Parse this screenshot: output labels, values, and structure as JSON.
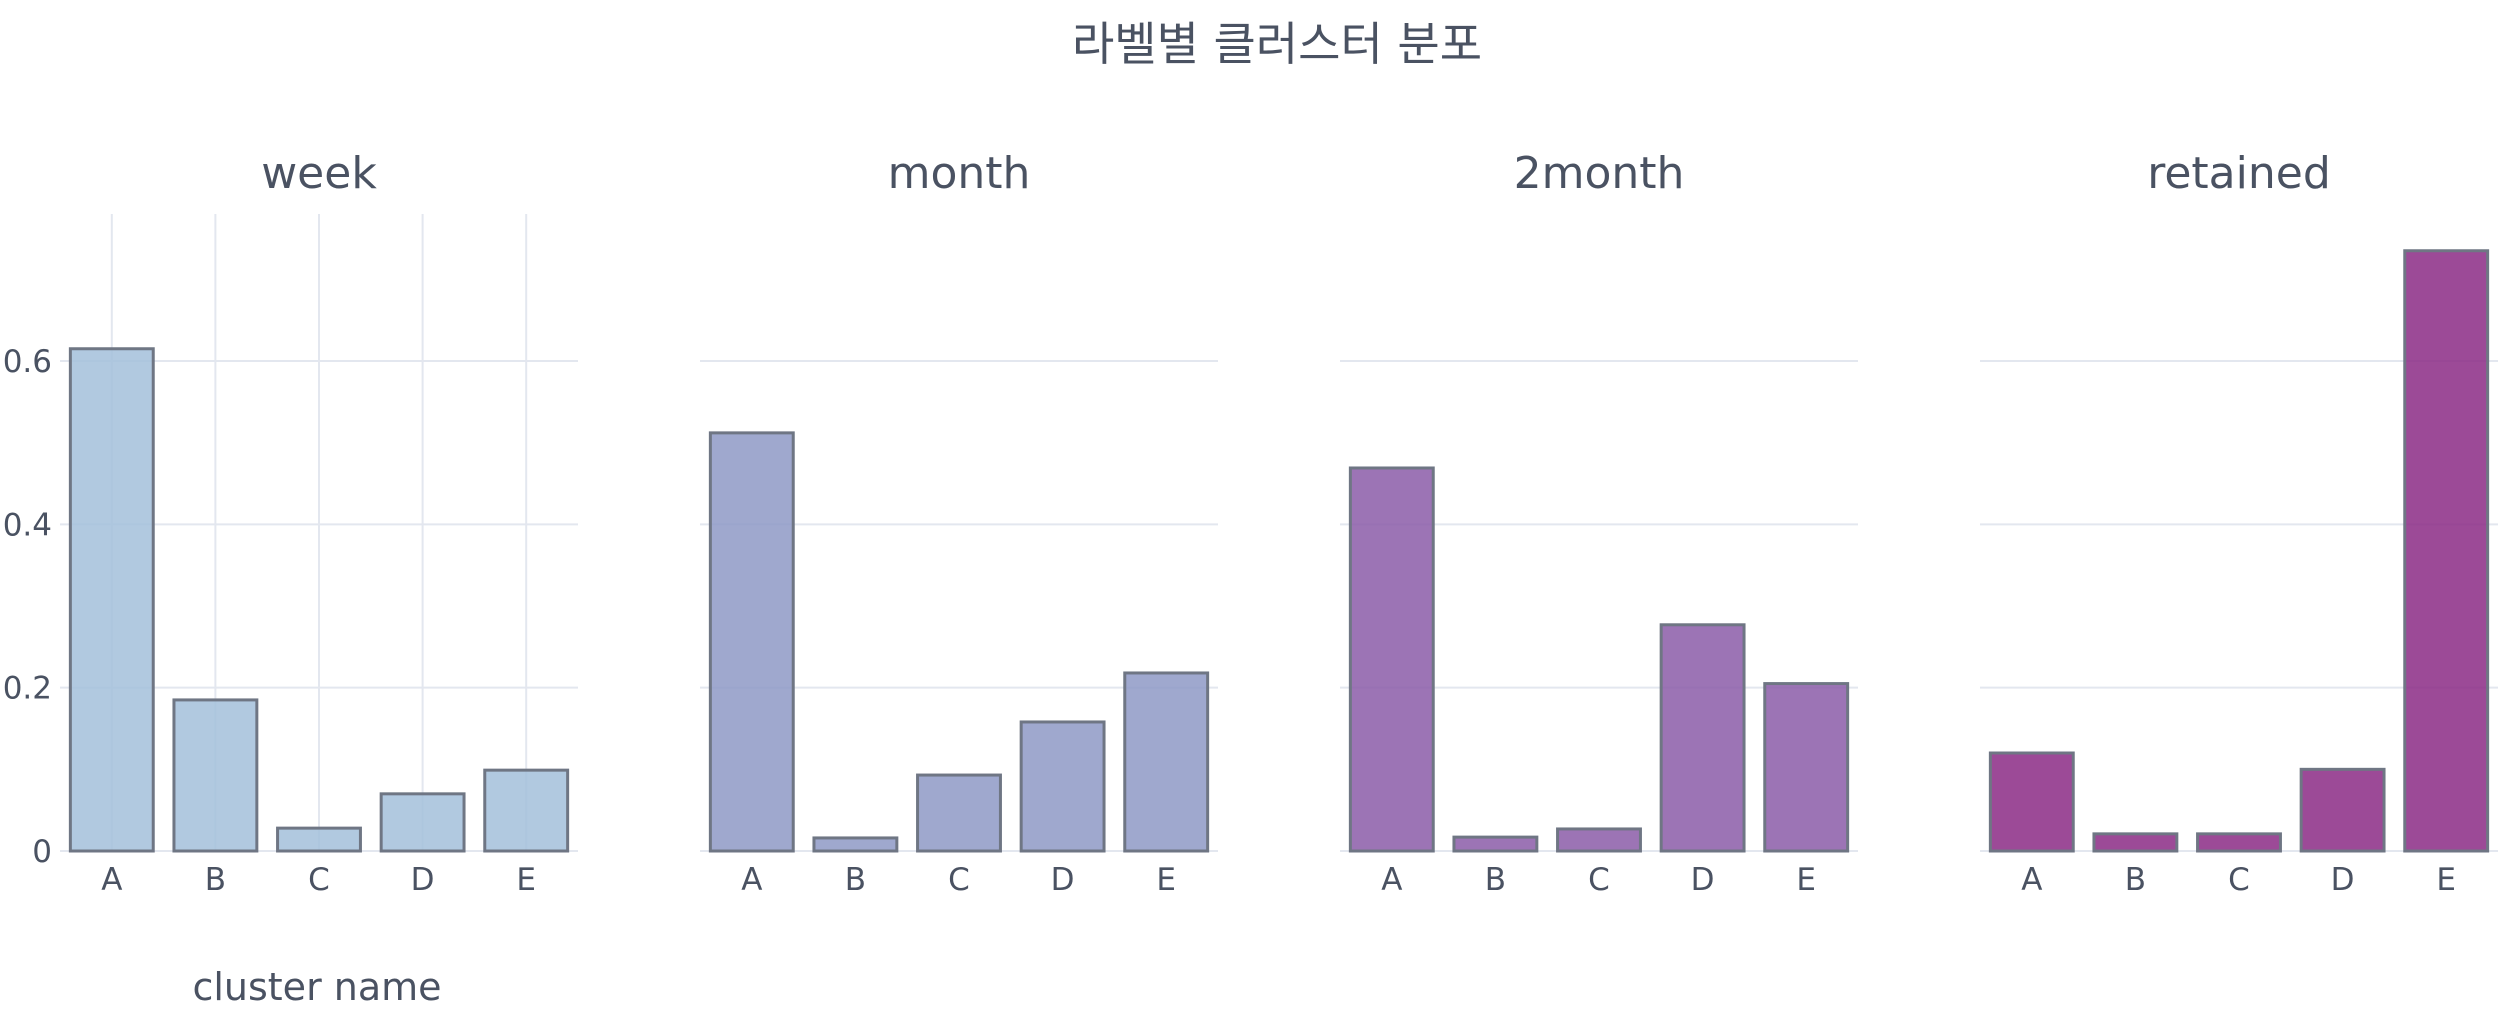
{
  "chart_data": {
    "title": "라벨별 클러스터 분포",
    "type": "bar",
    "xlabel": "cluster name",
    "ylim": [
      0,
      0.78
    ],
    "yticks": [
      0,
      0.2,
      0.4,
      0.6
    ],
    "ytick_labels": [
      "0",
      "0.2",
      "0.4",
      "0.6"
    ],
    "grid": true,
    "categories": [
      "A",
      "B",
      "C",
      "D",
      "E"
    ],
    "subplots": [
      {
        "title": "week",
        "color": "#a3bfdb",
        "values": [
          0.615,
          0.185,
          0.028,
          0.07,
          0.099
        ]
      },
      {
        "title": "month",
        "color": "#8e99c6",
        "values": [
          0.512,
          0.016,
          0.093,
          0.158,
          0.218
        ]
      },
      {
        "title": "2month",
        "color": "#8b5ca8",
        "values": [
          0.469,
          0.017,
          0.027,
          0.277,
          0.205
        ]
      },
      {
        "title": "retained",
        "color": "#8b2a85",
        "values": [
          0.12,
          0.021,
          0.021,
          0.1,
          0.735
        ]
      }
    ]
  }
}
